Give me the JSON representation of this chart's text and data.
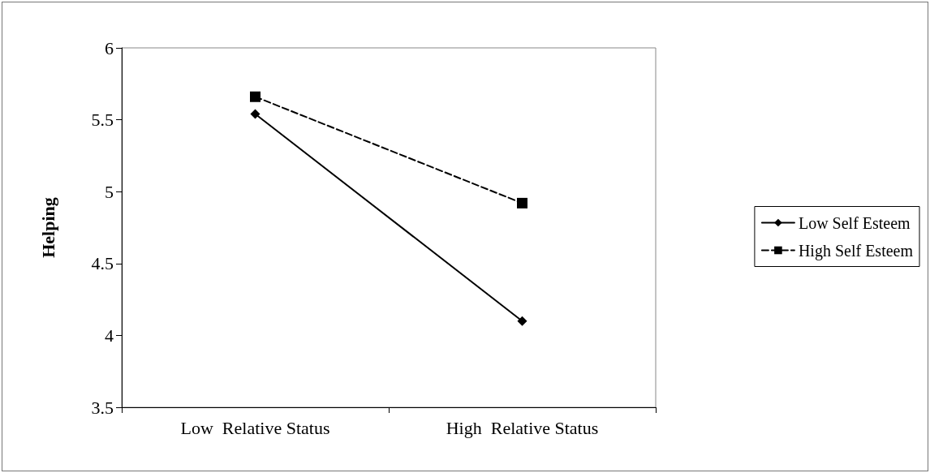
{
  "chart_data": {
    "type": "line",
    "ylabel": "Helping",
    "categories": [
      "Low  Relative Status",
      "High  Relative Status"
    ],
    "series": [
      {
        "name": "Low Self Esteem",
        "color": "#000000",
        "values": [
          5.54,
          4.1
        ],
        "marker": "diamond",
        "line_style": "solid"
      },
      {
        "name": "High Self Esteem",
        "color": "#000000",
        "values": [
          5.66,
          4.92
        ],
        "marker": "square",
        "line_style": "dashed"
      }
    ],
    "ylim": [
      3.5,
      6
    ],
    "yticks": [
      3.5,
      4,
      4.5,
      5,
      5.5,
      6
    ],
    "grid": false,
    "legend": "right"
  }
}
